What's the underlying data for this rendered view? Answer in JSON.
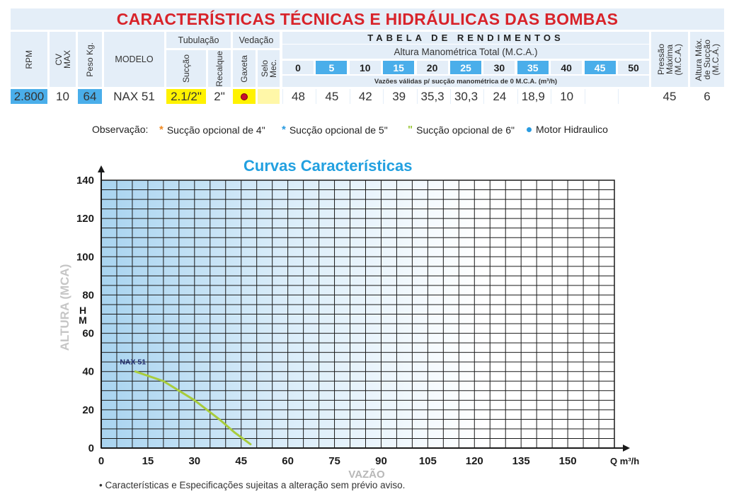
{
  "title": "CARACTERÍSTICAS TÉCNICAS E HIDRÁULICAS DAS BOMBAS",
  "headers": {
    "rpm": "RPM",
    "cv": "CV",
    "max": "MAX",
    "peso": "Peso Kg.",
    "modelo": "MODELO",
    "tubulacao": "Tubulação",
    "succao": "Sucção",
    "recalque": "Recalque",
    "vedacao": "Vedação",
    "gaxeta": "Gaxeta",
    "selo": "Selo Mec.",
    "tabela": "TABELA DE RENDIMENTOS",
    "altura": "Altura Manométrica Total (M.C.A.)",
    "vazoes": "Vazões válidas p/ sucção manométrica de 0 M.C.A. (m³/h)",
    "pressao1": "Pressão",
    "pressao2": "Máxima",
    "pressao3": "(M.C.A.)",
    "altmax1": "Altura Máx.",
    "altmax2": "de Sucção",
    "altmax3": "(M.C.A.)"
  },
  "heights": [
    "0",
    "5",
    "10",
    "15",
    "20",
    "25",
    "30",
    "35",
    "40",
    "45",
    "50"
  ],
  "row": {
    "rpm": "2.800",
    "cv": "10",
    "peso": "64",
    "modelo": "NAX 51",
    "succao": "2.1/2\"",
    "recalque": "2\"",
    "flows": [
      "48",
      "45",
      "42",
      "39",
      "35,3",
      "30,3",
      "24",
      "18,9",
      "10",
      "",
      ""
    ],
    "pressao": "45",
    "altura": "6"
  },
  "obs": {
    "label": "Observação:",
    "items": [
      {
        "text": "Sucção opcional de 4\"",
        "color": "#f08a24"
      },
      {
        "text": "Sucção opcional de 5\"",
        "color": "#2a9be0"
      },
      {
        "text": "Sucção opcional de 6\"",
        "color": "#9cc83a"
      },
      {
        "text": "Motor Hidraulico",
        "color": "#2a9be0"
      }
    ]
  },
  "chart_data": {
    "type": "line",
    "title": "Curvas Características",
    "xlabel": "VAZÃO",
    "xunit": "Q m³/h",
    "ylabel": "ALTURA (MCA)",
    "yunit": "H M",
    "xlim": [
      0,
      165
    ],
    "ylim": [
      0,
      140
    ],
    "xticks": [
      "0",
      "15",
      "30",
      "45",
      "60",
      "75",
      "90",
      "105",
      "120",
      "135",
      "150"
    ],
    "yticks": [
      "0",
      "20",
      "40",
      "60",
      "80",
      "100",
      "120",
      "140"
    ],
    "grid": true,
    "series": [
      {
        "name": "NAX 51",
        "color": "#a8cc3c",
        "x": [
          11,
          20,
          30,
          38,
          43,
          48
        ],
        "y": [
          40,
          35,
          25,
          15,
          8,
          2
        ]
      }
    ]
  },
  "footnote": "• Características e Especificações sujeitas a alteração sem prévio aviso."
}
